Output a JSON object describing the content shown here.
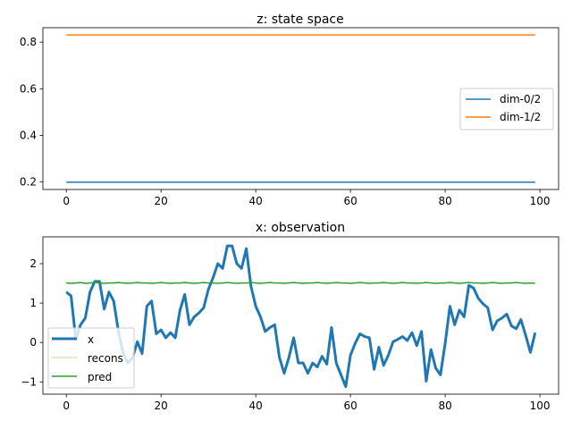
{
  "chart_data": [
    {
      "type": "line",
      "title": "z: state space",
      "xlabel": "",
      "ylabel": "",
      "xlim": [
        -4.95,
        103.95
      ],
      "ylim": [
        0.168,
        0.862
      ],
      "xticks": [
        0,
        20,
        40,
        60,
        80,
        100
      ],
      "yticks": [
        0.2,
        0.4,
        0.6,
        0.8
      ],
      "ytick_labels": [
        "0.2",
        "0.4",
        "0.6",
        "0.8"
      ],
      "legend_position": "center-right",
      "series": [
        {
          "name": "dim-0/2",
          "color": "#1f77b4",
          "x": [
            0,
            99
          ],
          "y": [
            0.199,
            0.199
          ]
        },
        {
          "name": "dim-1/2",
          "color": "#ff7f0e",
          "x": [
            0,
            99
          ],
          "y": [
            0.831,
            0.831
          ]
        }
      ]
    },
    {
      "type": "line",
      "title": "x: observation",
      "xlabel": "",
      "ylabel": "",
      "xlim": [
        -4.95,
        103.95
      ],
      "ylim": [
        -1.31,
        2.68
      ],
      "xticks": [
        0,
        20,
        40,
        60,
        80,
        100
      ],
      "yticks": [
        -1,
        0,
        1,
        2
      ],
      "ytick_labels": [
        "−1",
        "0",
        "1",
        "2"
      ],
      "legend_position": "lower-left",
      "series": [
        {
          "name": "x",
          "color": "#1f77b4",
          "y": [
            1.28,
            1.18,
            0.08,
            0.45,
            0.62,
            1.28,
            1.55,
            1.55,
            0.85,
            1.28,
            1.05,
            0.28,
            -0.28,
            -0.52,
            -0.38,
            0.02,
            -0.28,
            0.92,
            1.05,
            0.22,
            0.32,
            0.12,
            0.25,
            0.12,
            0.82,
            1.22,
            0.45,
            0.65,
            0.75,
            0.88,
            1.35,
            1.65,
            2.0,
            1.88,
            2.45,
            2.45,
            2.0,
            1.88,
            2.38,
            1.42,
            0.92,
            0.65,
            0.28,
            0.38,
            0.45,
            -0.38,
            -0.78,
            -0.38,
            0.12,
            -0.52,
            -0.52,
            -0.78,
            -0.52,
            -0.62,
            -0.35,
            -0.55,
            0.38,
            -0.52,
            -0.82,
            -1.12,
            -0.32,
            -0.02,
            0.22,
            0.15,
            0.12,
            -0.68,
            -0.12,
            -0.58,
            -0.32,
            0.02,
            0.08,
            0.15,
            0.05,
            0.25,
            -0.08,
            0.28,
            -0.98,
            -0.18,
            -0.65,
            -0.82,
            -0.02,
            0.92,
            0.45,
            0.82,
            0.65,
            1.45,
            1.38,
            1.12,
            0.98,
            0.88,
            0.32,
            0.55,
            0.62,
            0.72,
            0.42,
            0.35,
            0.58,
            0.18,
            -0.25,
            0.25
          ]
        },
        {
          "name": "recons",
          "color": "#ff7f0e",
          "x": [
            0,
            0.6
          ],
          "y": [
            1.52,
            1.52
          ]
        },
        {
          "name": "pred",
          "color": "#2ca02c",
          "y": [
            1.51,
            1.5,
            1.51,
            1.52,
            1.5,
            1.51,
            1.52,
            1.51,
            1.5,
            1.51,
            1.51,
            1.52,
            1.51,
            1.5,
            1.51,
            1.52,
            1.51,
            1.51,
            1.5,
            1.51,
            1.52,
            1.51,
            1.5,
            1.51,
            1.51,
            1.52,
            1.51,
            1.5,
            1.51,
            1.52,
            1.51,
            1.51,
            1.5,
            1.51,
            1.52,
            1.51,
            1.5,
            1.51,
            1.51,
            1.52,
            1.51,
            1.5,
            1.51,
            1.52,
            1.51,
            1.51,
            1.5,
            1.51,
            1.52,
            1.51,
            1.5,
            1.51,
            1.51,
            1.52,
            1.51,
            1.5,
            1.51,
            1.52,
            1.51,
            1.51,
            1.5,
            1.51,
            1.52,
            1.51,
            1.5,
            1.51,
            1.51,
            1.52,
            1.51,
            1.5,
            1.51,
            1.52,
            1.51,
            1.51,
            1.5,
            1.51,
            1.52,
            1.51,
            1.5,
            1.51,
            1.51,
            1.52,
            1.51,
            1.5,
            1.51,
            1.52,
            1.51,
            1.51,
            1.5,
            1.51,
            1.52,
            1.51,
            1.5,
            1.51,
            1.51,
            1.52,
            1.51,
            1.5,
            1.51,
            1.5
          ]
        }
      ]
    }
  ]
}
